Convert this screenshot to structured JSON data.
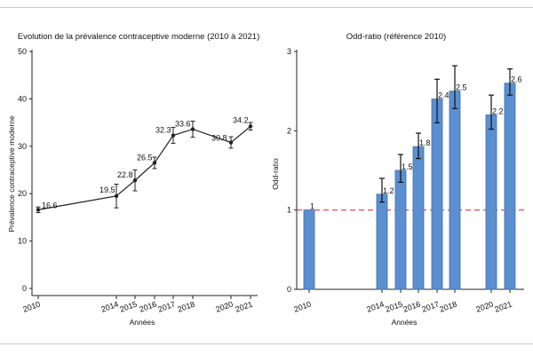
{
  "chart_data": [
    {
      "type": "line",
      "title": "Evolution de la prévalence contraceptive moderne (2010 à 2021)",
      "xlabel": "Années",
      "ylabel": "Prévalence contraceptive moderne",
      "ylim": [
        0,
        50
      ],
      "yticks": [
        0,
        10,
        20,
        30,
        40,
        50
      ],
      "categories": [
        "2010",
        "2014",
        "2015",
        "2016",
        "2017",
        "2018",
        "2020",
        "2021"
      ],
      "values": [
        16.6,
        19.5,
        22.8,
        26.5,
        32.3,
        33.6,
        30.8,
        34.2
      ],
      "labels": [
        "16.6",
        "19.5",
        "22.8",
        "26.5",
        "32.3",
        "33.6",
        "30.8",
        "34.2"
      ],
      "ci_low": [
        16.0,
        17.0,
        20.6,
        25.3,
        30.6,
        31.9,
        29.6,
        33.4
      ],
      "ci_high": [
        17.2,
        22.0,
        25.0,
        27.7,
        34.0,
        35.3,
        32.0,
        35.0
      ],
      "color": "#222222"
    },
    {
      "type": "bar",
      "title": "Odd-ratio (référence 2010)",
      "xlabel": "Années",
      "ylabel": "Odd-ratio",
      "ylim": [
        0,
        3
      ],
      "yticks": [
        0,
        1,
        2,
        3
      ],
      "reference_line": 1,
      "reference_color": "#e53935",
      "categories": [
        "2010",
        "2014",
        "2015",
        "2016",
        "2017",
        "2018",
        "2020",
        "2021"
      ],
      "values": [
        1,
        1.2,
        1.5,
        1.8,
        2.4,
        2.5,
        2.2,
        2.6
      ],
      "labels": [
        "1",
        "1.2",
        "1.5",
        "1.8",
        "2.4",
        "2.5",
        "2.2",
        "2.6"
      ],
      "ci_low": [
        null,
        1.1,
        1.35,
        1.65,
        2.1,
        2.28,
        2.02,
        2.45
      ],
      "ci_high": [
        null,
        1.4,
        1.7,
        1.97,
        2.65,
        2.82,
        2.45,
        2.78
      ],
      "bar_color": "#5b8fd1",
      "bar_edge": "#3a6ea8"
    }
  ]
}
